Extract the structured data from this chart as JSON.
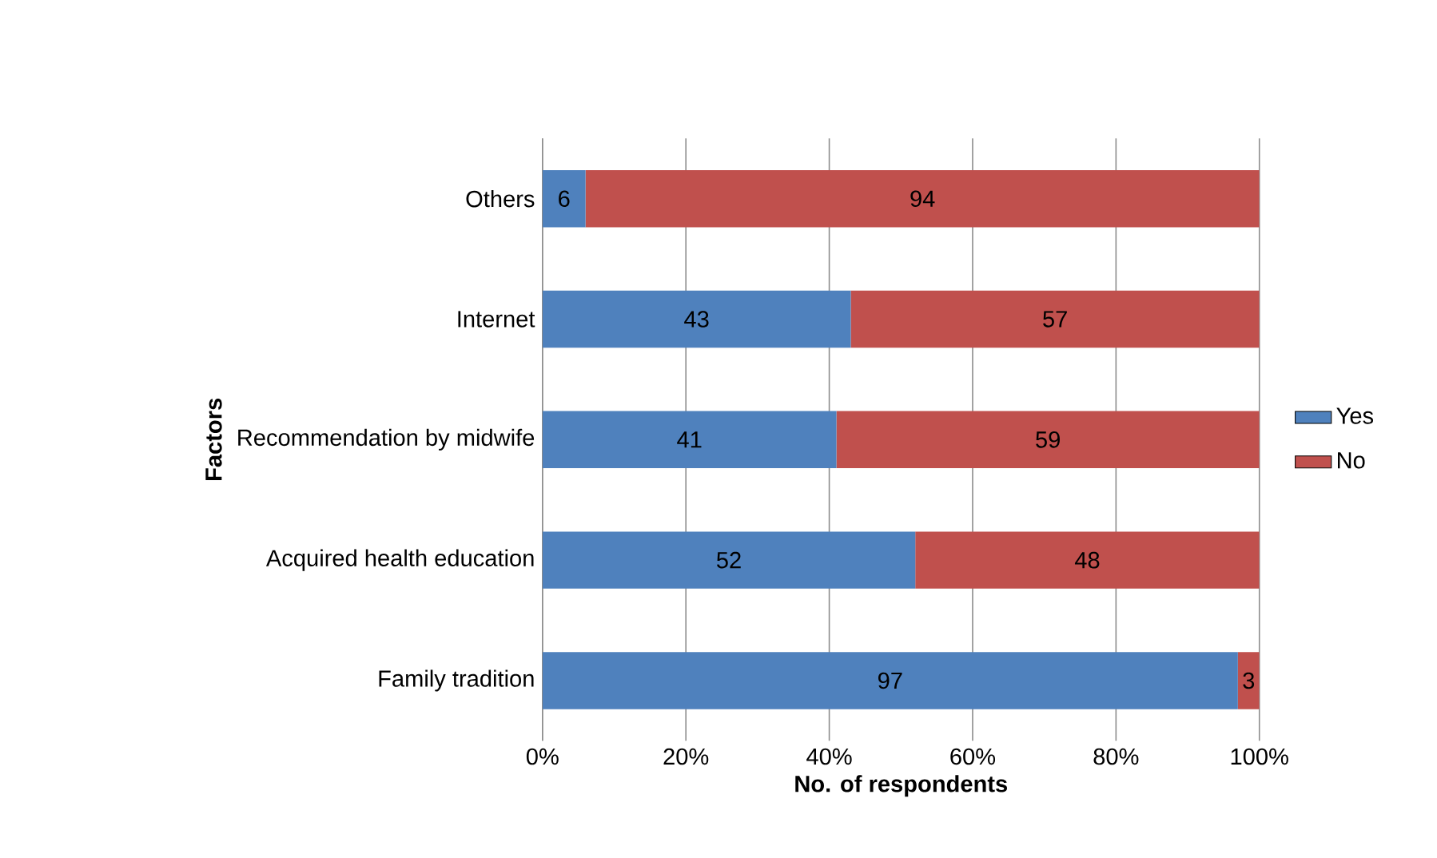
{
  "chart_data": {
    "type": "bar",
    "orientation": "horizontal",
    "stacked": true,
    "xlabel": "No. of respondents",
    "ylabel": "Factors",
    "categories": [
      "Others",
      "Internet",
      "Recommendation by midwife",
      "Acquired health education",
      "Family tradition"
    ],
    "series": [
      {
        "name": "Yes",
        "color": "#4f81bd",
        "values": [
          6,
          43,
          41,
          52,
          97
        ]
      },
      {
        "name": "No",
        "color": "#c0504d",
        "values": [
          94,
          57,
          59,
          48,
          3
        ]
      }
    ],
    "xlim": [
      0,
      100
    ],
    "xticks": [
      {
        "value": 0,
        "label": "0%"
      },
      {
        "value": 20,
        "label": "20%"
      },
      {
        "value": 40,
        "label": "40%"
      },
      {
        "value": 60,
        "label": "60%"
      },
      {
        "value": 80,
        "label": "80%"
      },
      {
        "value": 100,
        "label": "100%"
      }
    ],
    "grid": "x",
    "legend": "right",
    "data_labels": true
  }
}
